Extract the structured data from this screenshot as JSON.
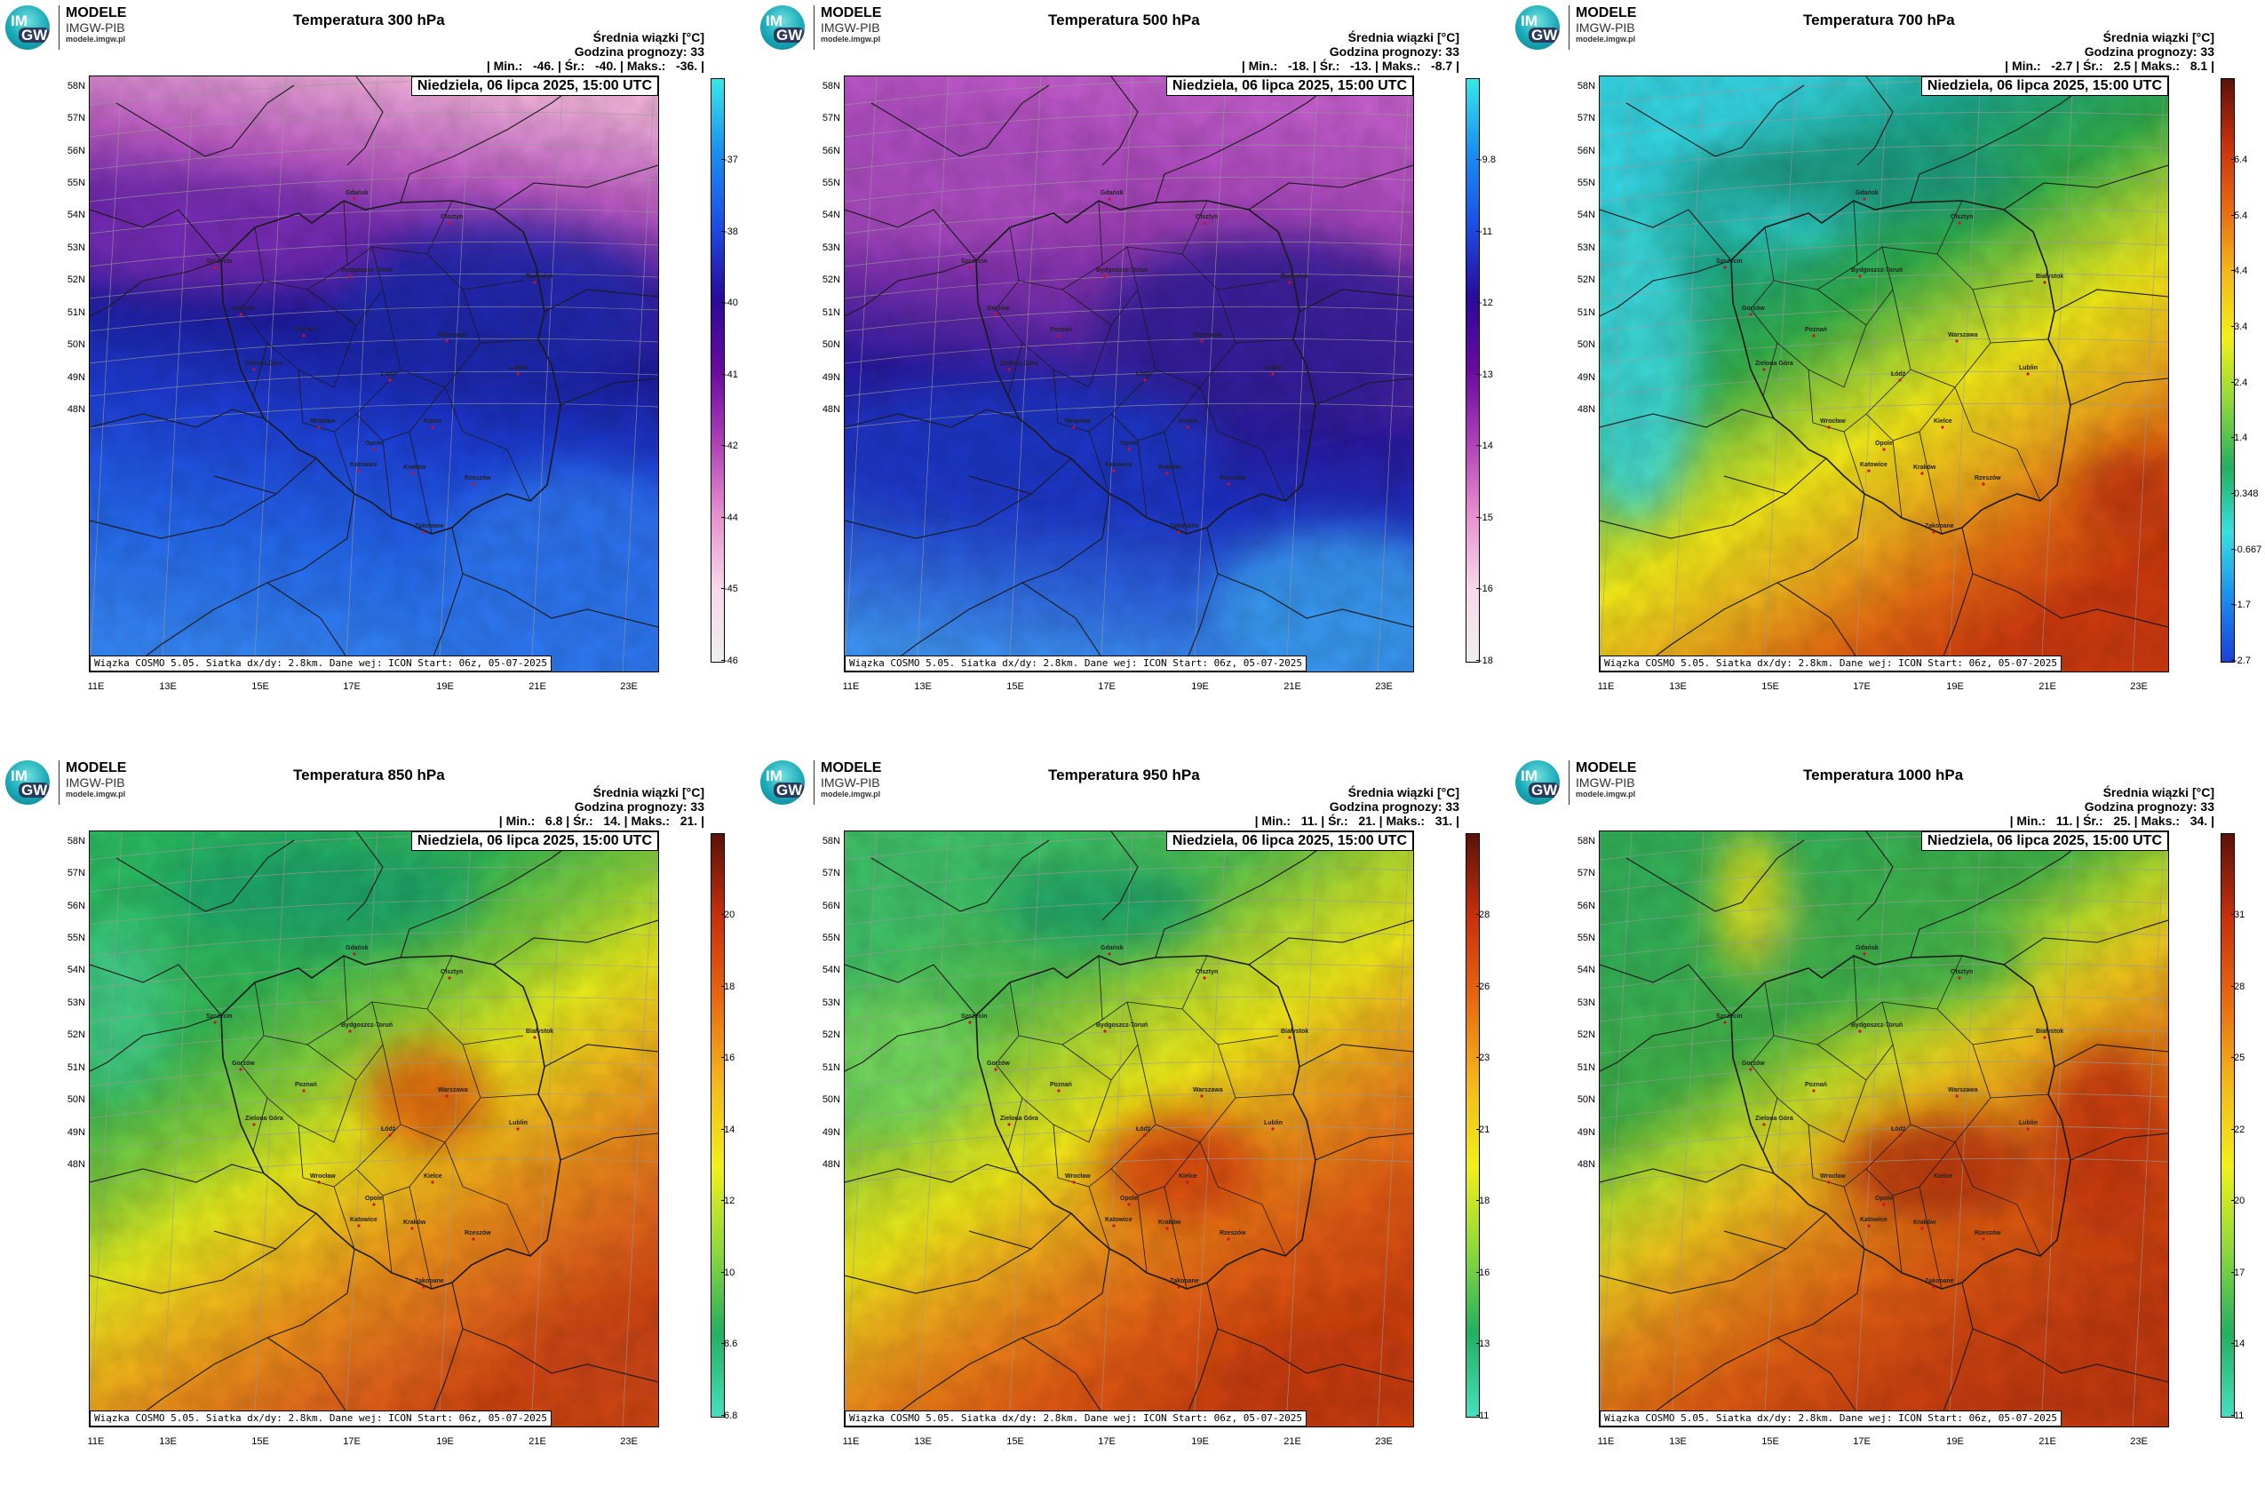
{
  "logo": {
    "line1": "MODELE",
    "line2": "IMGW-PIB",
    "line3": "modele.imgw.pl",
    "mark_top": "IM",
    "mark_bottom": "GW"
  },
  "common": {
    "date_label": "Niedziela, 06 lipca 2025, 15:00 UTC",
    "stat_title": "Średnia wiązki [°C]",
    "forecast_hour": "Godzina prognozy: 33",
    "credit": "Wiązka COSMO 5.05. Siatka dx/dy: 2.8km. Dane wej: ICON Start: 06z, 05-07-2025",
    "lat_labels": [
      "58N",
      "57N",
      "56N",
      "55N",
      "54N",
      "53N",
      "52N",
      "51N",
      "50N",
      "49N",
      "48N"
    ],
    "lon_labels": [
      "11E",
      "13E",
      "15E",
      "17E",
      "19E",
      "21E",
      "23E"
    ],
    "cities": [
      "Gdańsk",
      "Olsztyn",
      "Szczecin",
      "Bydgoszcz-Toruń",
      "Białystok",
      "Gorzów",
      "Poznań",
      "Warszawa",
      "Zielona Góra",
      "Łódź",
      "Lublin",
      "Wrocław",
      "Kielce",
      "Opole",
      "Katowice",
      "Kraków",
      "Rzeszów",
      "Zakopane"
    ]
  },
  "panels": [
    {
      "title": "Temperatura 300 hPa",
      "stats": "| Min.:   -46. | Śr.:   -40. | Maks.:   -36. |",
      "colorbar": {
        "ticks": [
          "-37",
          "-38",
          "-40",
          "-41",
          "-42",
          "-44",
          "-45",
          "-46"
        ],
        "colors": [
          "#36e8e8",
          "#1a8ff0",
          "#1b4fe6",
          "#2a0a9a",
          "#6a0aa0",
          "#b040b8",
          "#e890d0",
          "#f8d8ea",
          "#efefef"
        ]
      },
      "icon_palette": "cold"
    },
    {
      "title": "Temperatura 500 hPa",
      "stats": "| Min.:   -18. | Śr.:   -13. | Maks.:   -8.7 |",
      "colorbar": {
        "ticks": [
          "-9.8",
          "-11",
          "-12",
          "-13",
          "-14",
          "-15",
          "-16",
          "-18"
        ],
        "colors": [
          "#36e8e8",
          "#1a8ff0",
          "#1b4fe6",
          "#2a0a9a",
          "#6a0aa0",
          "#b040b8",
          "#e890d0",
          "#f8d8ea",
          "#efefef"
        ]
      },
      "icon_palette": "cold"
    },
    {
      "title": "Temperatura 700 hPa",
      "stats": "| Min.:   -2.7 | Śr.:   2.5 | Maks.:   8.1 |",
      "colorbar": {
        "ticks": [
          "6.4",
          "5.4",
          "4.4",
          "3.4",
          "2.4",
          "1.4",
          "0.348",
          "-0.667",
          "-1.7",
          "-2.7"
        ],
        "colors": [
          "#5a1208",
          "#c8300c",
          "#e86a10",
          "#f4b81a",
          "#f2f018",
          "#8ed83a",
          "#22b060",
          "#38e0e0",
          "#1a8ff0",
          "#1b3fd6"
        ]
      },
      "icon_palette": "warm"
    },
    {
      "title": "Temperatura 850 hPa",
      "stats": "| Min.:   6.8 | Śr.:   14. | Maks.:   21. |",
      "colorbar": {
        "ticks": [
          "20",
          "18",
          "16",
          "14",
          "12",
          "10",
          "8.6",
          "6.8"
        ],
        "colors": [
          "#5a1208",
          "#c8300c",
          "#e86a10",
          "#f4b81a",
          "#f2f018",
          "#8ed83a",
          "#22b060",
          "#45e0c0"
        ]
      },
      "icon_palette": "hot"
    },
    {
      "title": "Temperatura 950 hPa",
      "stats": "| Min.:   11. | Śr.:   21. | Maks.:   31. |",
      "colorbar": {
        "ticks": [
          "28",
          "26",
          "23",
          "21",
          "18",
          "16",
          "13",
          "11"
        ],
        "colors": [
          "#5a1208",
          "#c8300c",
          "#e86a10",
          "#f4b81a",
          "#f2f018",
          "#8ed83a",
          "#22b060",
          "#45e0c0"
        ]
      },
      "icon_palette": "hot"
    },
    {
      "title": "Temperatura 1000 hPa",
      "stats": "| Min.:   11. | Śr.:   25. | Maks.:   34. |",
      "colorbar": {
        "ticks": [
          "31",
          "28",
          "25",
          "22",
          "20",
          "17",
          "14",
          "11"
        ],
        "colors": [
          "#5a1208",
          "#c8300c",
          "#e86a10",
          "#f4b81a",
          "#f2f018",
          "#8ed83a",
          "#22b060",
          "#45e0c0"
        ]
      },
      "icon_palette": "hot"
    }
  ]
}
